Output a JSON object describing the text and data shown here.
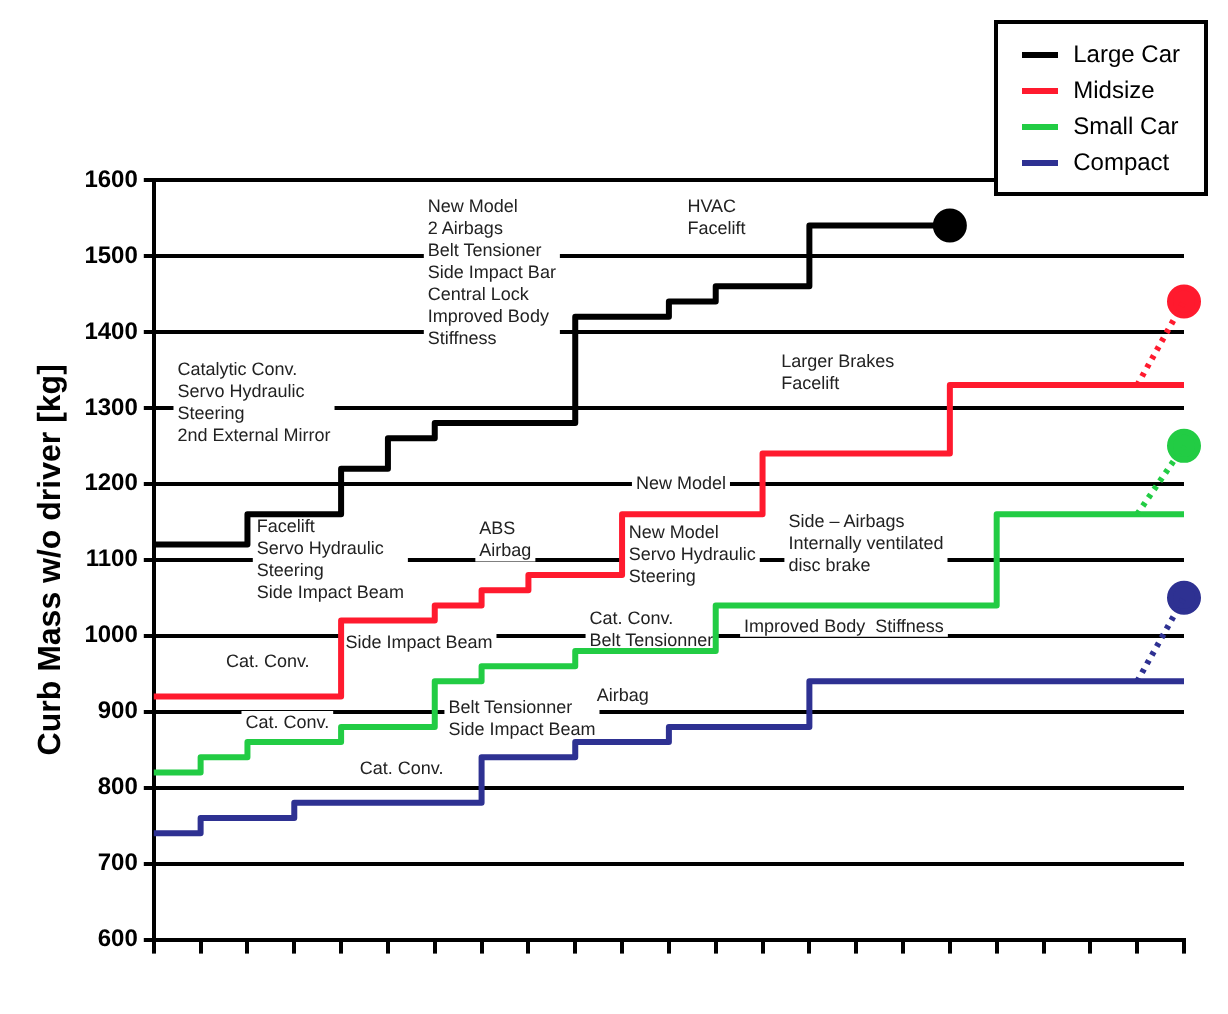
{
  "chart_data": {
    "type": "step",
    "ylabel": "Curb Mass w/o driver [kg]",
    "categories": [
      null,
      null,
      null,
      null,
      null,
      null,
      null,
      null,
      null,
      null,
      null,
      null,
      null,
      null,
      null,
      null,
      null,
      null,
      null,
      null,
      null,
      null,
      null
    ],
    "ylim": [
      600,
      1600
    ],
    "yticks": [
      600,
      700,
      800,
      900,
      1000,
      1100,
      1200,
      1300,
      1400,
      1500,
      1600
    ],
    "grid": "y",
    "legend": "top right",
    "marker": "none",
    "series": [
      {
        "name": "Large Car",
        "color": "#000000",
        "values": [
          1120,
          1120,
          1120,
          1160,
          1160,
          1220,
          1260,
          1280,
          1280,
          1280,
          1420,
          1420,
          1440,
          1460,
          1460,
          1540,
          1540,
          1540,
          null,
          null,
          null,
          null,
          null
        ]
      },
      {
        "name": "Midsize",
        "color": "#ff1a2e",
        "values": [
          920,
          920,
          920,
          920,
          920,
          1020,
          1020,
          1040,
          1060,
          1080,
          1080,
          1160,
          1160,
          1160,
          1240,
          1240,
          1240,
          1240,
          1330,
          1330,
          1330,
          1330,
          1330
        ]
      },
      {
        "name": "Small Car",
        "color": "#22cc44",
        "values": [
          820,
          820,
          840,
          860,
          860,
          880,
          880,
          940,
          960,
          960,
          980,
          980,
          980,
          1040,
          1040,
          1040,
          1040,
          1040,
          1040,
          1160,
          1160,
          1160,
          1160
        ]
      },
      {
        "name": "Compact",
        "color": "#2e3192",
        "values": [
          740,
          740,
          760,
          760,
          780,
          780,
          780,
          780,
          840,
          840,
          860,
          860,
          880,
          880,
          880,
          940,
          940,
          940,
          940,
          940,
          940,
          940,
          940
        ]
      },
      {
        "type": "line",
        "line_style": "dotted",
        "color": "#ff1a2e",
        "values": [
          null,
          null,
          null,
          null,
          null,
          null,
          null,
          null,
          null,
          null,
          null,
          null,
          null,
          null,
          null,
          null,
          null,
          null,
          null,
          null,
          null,
          1330,
          1440
        ]
      },
      {
        "type": "line",
        "line_style": "dotted",
        "color": "#22cc44",
        "values": [
          null,
          null,
          null,
          null,
          null,
          null,
          null,
          null,
          null,
          null,
          null,
          null,
          null,
          null,
          null,
          null,
          null,
          null,
          null,
          null,
          null,
          1160,
          1250
        ]
      },
      {
        "type": "line",
        "line_style": "dotted",
        "color": "#2e3192",
        "values": [
          null,
          null,
          null,
          null,
          null,
          null,
          null,
          null,
          null,
          null,
          null,
          null,
          null,
          null,
          null,
          null,
          null,
          null,
          null,
          null,
          null,
          940,
          1050
        ]
      },
      {
        "type": "scatter",
        "marker": "circle",
        "color": "#000000",
        "values": [
          null,
          null,
          null,
          null,
          null,
          null,
          null,
          null,
          null,
          null,
          null,
          null,
          null,
          null,
          null,
          null,
          null,
          1540,
          null,
          null,
          null,
          null,
          null
        ]
      },
      {
        "type": "scatter",
        "marker": "circle",
        "color": "#ff1a2e",
        "values": [
          null,
          null,
          null,
          null,
          null,
          null,
          null,
          null,
          null,
          null,
          null,
          null,
          null,
          null,
          null,
          null,
          null,
          null,
          null,
          null,
          null,
          null,
          1440
        ]
      },
      {
        "type": "scatter",
        "marker": "circle",
        "color": "#22cc44",
        "values": [
          null,
          null,
          null,
          null,
          null,
          null,
          null,
          null,
          null,
          null,
          null,
          null,
          null,
          null,
          null,
          null,
          null,
          null,
          null,
          null,
          null,
          null,
          1250
        ]
      },
      {
        "type": "scatter",
        "marker": "circle",
        "color": "#2e3192",
        "values": [
          null,
          null,
          null,
          null,
          null,
          null,
          null,
          null,
          null,
          null,
          null,
          null,
          null,
          null,
          null,
          null,
          null,
          null,
          null,
          null,
          null,
          null,
          1050
        ]
      }
    ],
    "annotations": [
      "Catalytic Conv.\nServo Hydraulic\nSteering\n2nd External Mirror",
      "New Model\n2 Airbags\nBelt Tensioner\nSide Impact Bar\nCentral Lock\nImproved Body\nStiffness",
      "HVAC\nFacelift",
      "Larger Brakes\nFacelift",
      "New Model",
      "Facelift\nServo Hydraulic\nSteering\nSide Impact Beam",
      "ABS\nAirbag",
      "New Model\nServo Hydraulic\nSteering",
      "Side – Airbags\nInternally ventilated\ndisc brake",
      "Cat. Conv.",
      "Cat. Conv.\nBelt Tensionner",
      "Side Impact Beam",
      "Improved Body  Stiffness",
      "Cat. Conv.",
      "Belt Tensionner\nSide Impact Beam",
      "Airbag",
      "Cat. Conv."
    ]
  }
}
